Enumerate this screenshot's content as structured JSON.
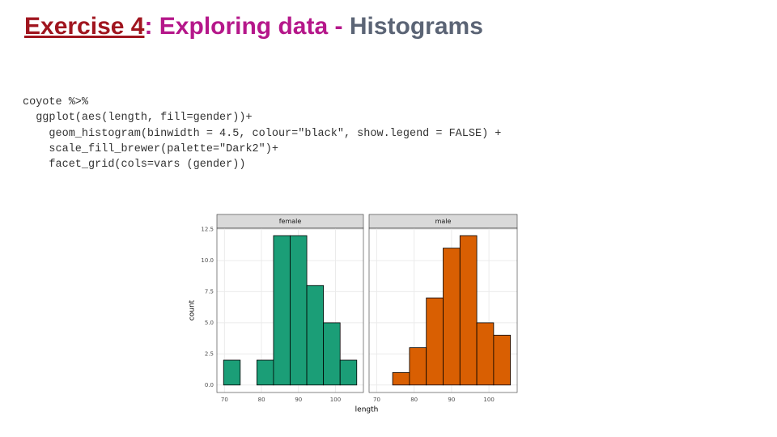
{
  "slide": {
    "title": {
      "part1": "Exercise 4",
      "part2": ": Exploring data - ",
      "part3": "Histograms"
    },
    "code": [
      "coyote %>%",
      "  ggplot(aes(length, fill=gender))+",
      "    geom_histogram(binwidth = 4.5, colour=\"black\", show.legend = FALSE) +",
      "    scale_fill_brewer(palette=\"Dark2\")+",
      "    facet_grid(cols=vars (gender))"
    ]
  },
  "chart_data": [
    {
      "type": "histogram",
      "title": "female",
      "ylabel": "count",
      "xlabel": "length",
      "color": "#1b9e77",
      "bins": [
        69.75,
        74.25,
        78.75,
        83.25,
        87.75,
        92.25,
        96.75,
        101.25,
        105.75
      ],
      "values": [
        2,
        0,
        2,
        12,
        12,
        8,
        5,
        2
      ],
      "xlim": [
        67.95,
        107.55
      ],
      "xticks": [
        70,
        80,
        90,
        100
      ],
      "ylim": [
        -0.6,
        12.6
      ],
      "yticks": [
        {
          "value": 0,
          "label": "0.0"
        },
        2.5,
        {
          "value": 5,
          "label": "5.0"
        },
        7.5,
        {
          "value": 10,
          "label": "10.0"
        },
        12.5
      ],
      "grid": true
    },
    {
      "type": "histogram",
      "title": "male",
      "color": "#d95f02",
      "bins": [
        69.75,
        74.25,
        78.75,
        83.25,
        87.75,
        92.25,
        96.75,
        101.25,
        105.75
      ],
      "values": [
        0,
        1,
        3,
        7,
        11,
        12,
        5,
        4
      ],
      "xlim": [
        67.95,
        107.55
      ],
      "xticks": [
        70,
        80,
        90,
        100
      ],
      "ylim": [
        -0.6,
        12.6
      ],
      "grid": true
    }
  ]
}
